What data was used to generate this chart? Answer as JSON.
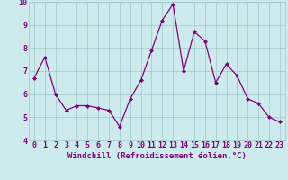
{
  "x": [
    0,
    1,
    2,
    3,
    4,
    5,
    6,
    7,
    8,
    9,
    10,
    11,
    12,
    13,
    14,
    15,
    16,
    17,
    18,
    19,
    20,
    21,
    22,
    23
  ],
  "y": [
    6.7,
    7.6,
    6.0,
    5.3,
    5.5,
    5.5,
    5.4,
    5.3,
    4.6,
    5.8,
    6.6,
    7.9,
    9.2,
    9.9,
    7.0,
    8.7,
    8.3,
    6.5,
    7.3,
    6.8,
    5.8,
    5.6,
    5.0,
    4.8
  ],
  "xlabel": "Windchill (Refroidissement éolien,°C)",
  "ylim": [
    4,
    10
  ],
  "xlim_left": -0.5,
  "xlim_right": 23.5,
  "yticks": [
    4,
    5,
    6,
    7,
    8,
    9,
    10
  ],
  "xticks": [
    0,
    1,
    2,
    3,
    4,
    5,
    6,
    7,
    8,
    9,
    10,
    11,
    12,
    13,
    14,
    15,
    16,
    17,
    18,
    19,
    20,
    21,
    22,
    23
  ],
  "line_color": "#800080",
  "marker": "D",
  "marker_size": 2.0,
  "bg_color": "#cdeaed",
  "grid_color": "#a0c8cc",
  "xlabel_fontsize": 6.5,
  "tick_fontsize": 6.0,
  "xlabel_color": "#800080",
  "tick_color": "#800080",
  "line_width": 0.9
}
